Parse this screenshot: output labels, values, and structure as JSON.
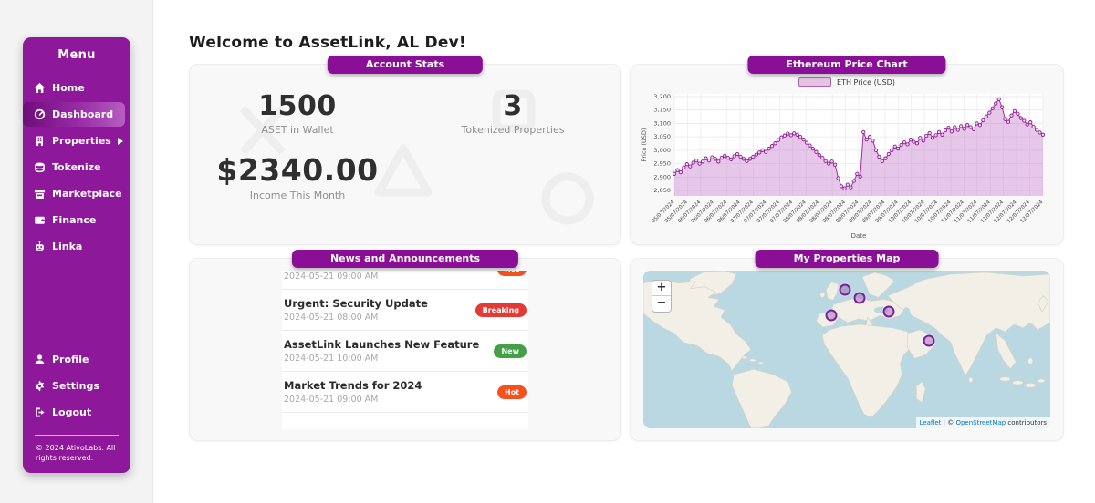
{
  "app": {
    "heading": "Welcome to AssetLink, AL Dev!"
  },
  "colors": {
    "brand_purple": "#8d189a",
    "badge_purple": "#8a0e96",
    "breaking_red": "#e53935",
    "new_green": "#43a047",
    "hot_orange": "#f4511e",
    "chart_line": "#9c2f9f",
    "map_ocean": "#b9d8e2"
  },
  "sidebar": {
    "title": "Menu",
    "items": [
      {
        "label": "Home",
        "icon": "home-icon",
        "active": false
      },
      {
        "label": "Dashboard",
        "icon": "dashboard-icon",
        "active": true
      },
      {
        "label": "Properties",
        "icon": "building-icon",
        "active": false,
        "has_submenu": true
      },
      {
        "label": "Tokenize",
        "icon": "coins-icon",
        "active": false
      },
      {
        "label": "Marketplace",
        "icon": "store-icon",
        "active": false
      },
      {
        "label": "Finance",
        "icon": "wallet-icon",
        "active": false
      },
      {
        "label": "Linka",
        "icon": "robot-icon",
        "active": false
      }
    ],
    "footer_items": [
      {
        "label": "Profile",
        "icon": "user-icon"
      },
      {
        "label": "Settings",
        "icon": "gear-icon"
      },
      {
        "label": "Logout",
        "icon": "logout-icon"
      }
    ],
    "copyright": "© 2024 AtivoLabs. All rights reserved."
  },
  "cards": {
    "account_stats": {
      "title": "Account Stats",
      "stats": [
        {
          "value": "1500",
          "label": "ASET in Wallet"
        },
        {
          "value": "3",
          "label": "Tokenized Properties"
        },
        {
          "value": "$2340.00",
          "label": "Income This Month"
        }
      ]
    },
    "news": {
      "title": "News and Announcements",
      "items": [
        {
          "title": "",
          "time": "2024-05-21 09:00 AM",
          "badge": "Hot",
          "badge_color": "#f4511e"
        },
        {
          "title": "Urgent: Security Update",
          "time": "2024-05-21 08:00 AM",
          "badge": "Breaking",
          "badge_color": "#e53935"
        },
        {
          "title": "AssetLink Launches New Feature",
          "time": "2024-05-21 10:00 AM",
          "badge": "New",
          "badge_color": "#43a047"
        },
        {
          "title": "Market Trends for 2024",
          "time": "2024-05-21 09:00 AM",
          "badge": "Hot",
          "badge_color": "#f4511e"
        },
        {
          "title": "AssetLink Launches New Feature",
          "time": "",
          "badge": "",
          "badge_color": ""
        }
      ]
    },
    "map": {
      "title": "My Properties Map",
      "zoom_in": "+",
      "zoom_out": "−",
      "attribution": {
        "leaflet": "Leaflet",
        "sep": " | © ",
        "osm": "OpenStreetMap",
        "suffix": " contributors"
      },
      "markers": [
        {
          "x": 49.6,
          "y": 12.0
        },
        {
          "x": 53.1,
          "y": 17.6
        },
        {
          "x": 46.2,
          "y": 28.4
        },
        {
          "x": 60.4,
          "y": 26.1
        },
        {
          "x": 70.2,
          "y": 44.3
        }
      ]
    }
  },
  "chart_data": {
    "type": "area",
    "title": "Ethereum Price Chart",
    "legend": [
      "ETH Price (USD)"
    ],
    "xlabel": "Date",
    "ylabel": "Price (USD)",
    "ylim": [
      2830,
      3210
    ],
    "y_ticks": [
      3200,
      3150,
      3100,
      3050,
      3000,
      2950,
      2900,
      2850
    ],
    "x_ticks": [
      "05/07/2024",
      "05/07/2024",
      "06/07/2024",
      "06/07/2024",
      "06/07/2024",
      "06/07/2024",
      "07/07/2024",
      "07/07/2024",
      "07/07/2024",
      "07/07/2024",
      "08/07/2024",
      "08/07/2024",
      "08/07/2024",
      "08/07/2024",
      "09/07/2024",
      "09/07/2024",
      "09/07/2024",
      "09/07/2024",
      "10/07/2024",
      "10/07/2024",
      "10/07/2024",
      "10/07/2024",
      "11/07/2024",
      "11/07/2024",
      "11/07/2024",
      "11/07/2024",
      "12/07/2024",
      "12/07/2024",
      "12/07/2024"
    ],
    "values": [
      2912,
      2926,
      2918,
      2936,
      2948,
      2940,
      2954,
      2962,
      2950,
      2958,
      2970,
      2962,
      2974,
      2968,
      2958,
      2972,
      2980,
      2972,
      2966,
      2978,
      2986,
      2976,
      2968,
      2960,
      2968,
      2976,
      2984,
      2992,
      3000,
      2994,
      3006,
      3016,
      3026,
      3038,
      3048,
      3055,
      3062,
      3056,
      3063,
      3058,
      3050,
      3040,
      3028,
      3018,
      3006,
      2994,
      2982,
      2972,
      2960,
      2950,
      2958,
      2946,
      2896,
      2866,
      2858,
      2872,
      2862,
      2886,
      2912,
      2902,
      3068,
      3040,
      3050,
      3036,
      3000,
      2976,
      2960,
      2970,
      2986,
      3000,
      3014,
      3006,
      3020,
      3030,
      3022,
      3040,
      3032,
      3026,
      3046,
      3036,
      3054,
      3064,
      3046,
      3056,
      3068,
      3058,
      3074,
      3084,
      3070,
      3086,
      3076,
      3090,
      3080,
      3094,
      3086,
      3078,
      3100,
      3094,
      3112,
      3126,
      3140,
      3156,
      3174,
      3190,
      3160,
      3116,
      3106,
      3130,
      3146,
      3136,
      3120,
      3110,
      3096,
      3104,
      3088,
      3076,
      3066,
      3058
    ],
    "line_color": "#9c2f9f",
    "fill_color": "rgba(189,107,196,0.38)",
    "marker_color": "#8e1f96",
    "grid": true,
    "legend_position": "top-center"
  }
}
